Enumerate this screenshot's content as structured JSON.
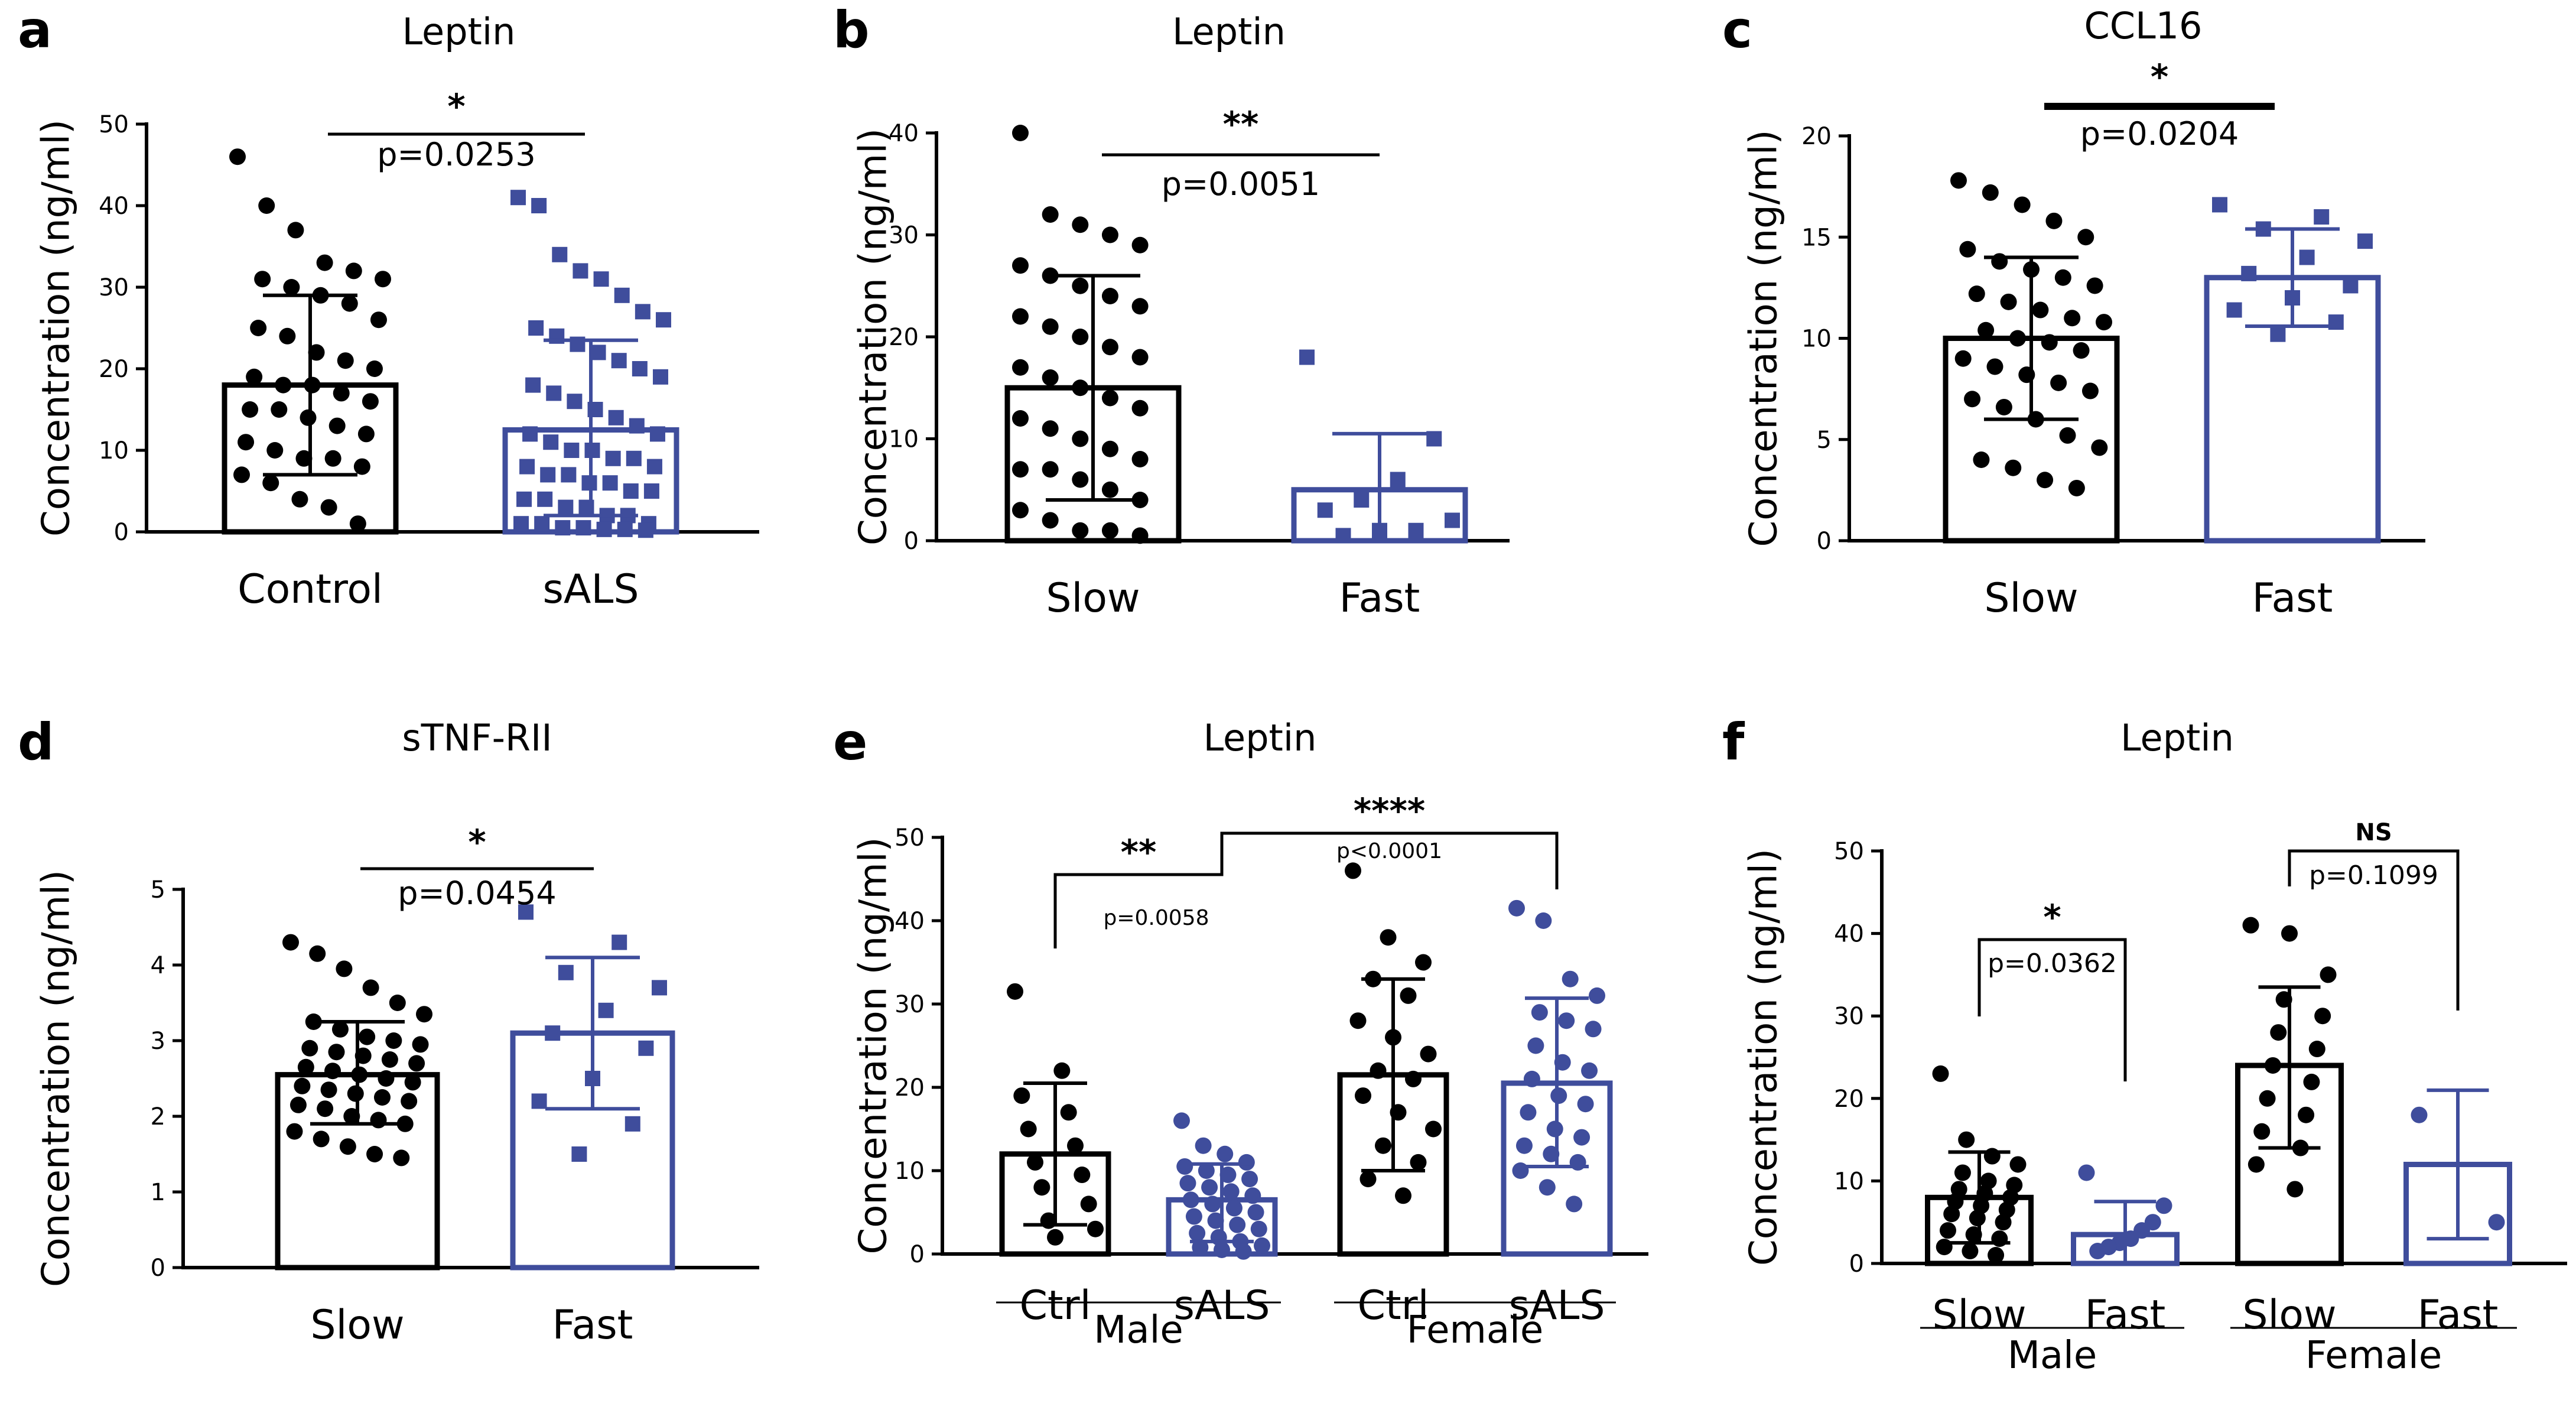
{
  "figure": {
    "y_axis_label": "Concentration (ng/ml)",
    "colors": {
      "black": "#000000",
      "blue": "#3f4d9c"
    }
  },
  "chart_data": [
    {
      "panel": "a",
      "type": "bar",
      "title": "Leptin",
      "ylabel": "Concentration (ng/ml)",
      "ylim": [
        0,
        50
      ],
      "yticks": [
        "0",
        "10",
        "20",
        "30",
        "40",
        "50"
      ],
      "yticks_values": [
        0,
        10,
        20,
        30,
        40,
        50
      ],
      "categories": [
        "Control",
        "sALS"
      ],
      "series": [
        {
          "name": "Control",
          "mean": 18,
          "sd_low": 7,
          "sd_high": 29,
          "color": "#000000",
          "marker": "circle",
          "points": [
            46,
            40,
            37,
            33,
            32,
            31,
            31,
            30,
            29,
            28,
            26,
            25,
            24,
            22,
            21,
            20,
            19,
            18,
            18,
            17,
            16,
            15,
            15,
            14,
            13,
            12,
            11,
            10,
            9,
            9,
            8,
            7,
            6,
            4,
            3,
            1
          ]
        },
        {
          "name": "sALS",
          "mean": 12.5,
          "sd_low": 2,
          "sd_high": 23.5,
          "color": "#3f4d9c",
          "marker": "square",
          "points": [
            41,
            40,
            34,
            32,
            31,
            29,
            27,
            26,
            25,
            24,
            23,
            22,
            21,
            20,
            19,
            18,
            17,
            16,
            15,
            14,
            13,
            12,
            12,
            11,
            10,
            10,
            9,
            9,
            8,
            8,
            7,
            7,
            6,
            6,
            5,
            5,
            4,
            4,
            3,
            3,
            2,
            2,
            1,
            1,
            1,
            0.5,
            0.5,
            0.3,
            0.3,
            0.2
          ]
        }
      ],
      "comparisons": [
        {
          "from": 0,
          "to": 1,
          "stars": "*",
          "p": "p=0.0253",
          "style": "line"
        }
      ]
    },
    {
      "panel": "b",
      "type": "bar",
      "title": "Leptin",
      "ylabel": "Concentration (ng/ml)",
      "ylim": [
        0,
        40
      ],
      "yticks": [
        "0",
        "10",
        "20",
        "30",
        "40"
      ],
      "yticks_values": [
        0,
        10,
        20,
        30,
        40
      ],
      "categories": [
        "Slow",
        "Fast"
      ],
      "series": [
        {
          "name": "Slow",
          "mean": 15,
          "sd_low": 4,
          "sd_high": 26,
          "color": "#000000",
          "marker": "circle",
          "points": [
            40,
            32,
            31,
            30,
            29,
            27,
            26,
            25,
            24,
            23,
            22,
            21,
            20,
            19,
            18,
            17,
            16,
            15,
            14,
            13,
            12,
            11,
            10,
            9,
            8,
            7,
            7,
            6,
            5,
            4,
            3,
            2,
            1,
            1,
            0.5
          ]
        },
        {
          "name": "Fast",
          "mean": 5,
          "sd_low": 0,
          "sd_high": 10.5,
          "color": "#3f4d9c",
          "marker": "square",
          "points": [
            18,
            10,
            6,
            4,
            3,
            2,
            1,
            1,
            0.5
          ]
        }
      ],
      "comparisons": [
        {
          "from": 0,
          "to": 1,
          "stars": "**",
          "p": "p=0.0051",
          "style": "line"
        }
      ]
    },
    {
      "panel": "c",
      "type": "bar",
      "title": "CCL16",
      "ylabel": "Concentration (ng/ml)",
      "ylim": [
        0,
        20
      ],
      "yticks": [
        "0",
        "5",
        "10",
        "15",
        "20"
      ],
      "yticks_values": [
        0,
        5,
        10,
        15,
        20
      ],
      "categories": [
        "Slow",
        "Fast"
      ],
      "series": [
        {
          "name": "Slow",
          "mean": 10,
          "sd_low": 6,
          "sd_high": 14,
          "color": "#000000",
          "marker": "circle",
          "points": [
            17.8,
            17.2,
            16.6,
            15.8,
            15,
            14.4,
            13.8,
            13.4,
            13,
            12.6,
            12.2,
            11.8,
            11.4,
            11,
            10.8,
            10.4,
            10,
            9.8,
            9.4,
            9,
            8.6,
            8.2,
            7.8,
            7.4,
            7,
            6.6,
            6,
            5.2,
            4.6,
            4,
            3.6,
            3,
            2.6
          ]
        },
        {
          "name": "Fast",
          "mean": 13,
          "sd_low": 10.6,
          "sd_high": 15.4,
          "color": "#3f4d9c",
          "marker": "square",
          "points": [
            16.6,
            16,
            15.4,
            14.8,
            14,
            13.2,
            12.6,
            12,
            11.4,
            10.8,
            10.2
          ]
        }
      ],
      "comparisons": [
        {
          "from": 0,
          "to": 1,
          "stars": "*",
          "p": "p=0.0204",
          "style": "thick"
        }
      ]
    },
    {
      "panel": "d",
      "type": "bar",
      "title": "sTNF-RII",
      "ylabel": "Concentration (ng/ml)",
      "ylim": [
        0,
        5
      ],
      "yticks": [
        "0",
        "1",
        "2",
        "3",
        "4",
        "5"
      ],
      "yticks_values": [
        0,
        1,
        2,
        3,
        4,
        5
      ],
      "categories": [
        "Slow",
        "Fast"
      ],
      "series": [
        {
          "name": "Slow",
          "mean": 2.55,
          "sd_low": 1.9,
          "sd_high": 3.25,
          "color": "#000000",
          "marker": "circle",
          "points": [
            4.3,
            4.15,
            3.95,
            3.7,
            3.5,
            3.35,
            3.25,
            3.15,
            3.05,
            3.0,
            2.95,
            2.9,
            2.85,
            2.8,
            2.75,
            2.7,
            2.65,
            2.6,
            2.55,
            2.5,
            2.45,
            2.4,
            2.35,
            2.3,
            2.25,
            2.2,
            2.15,
            2.1,
            2.0,
            1.95,
            1.9,
            1.8,
            1.7,
            1.6,
            1.5,
            1.45
          ]
        },
        {
          "name": "Fast",
          "mean": 3.1,
          "sd_low": 2.1,
          "sd_high": 4.1,
          "color": "#3f4d9c",
          "marker": "square",
          "points": [
            4.7,
            4.3,
            3.9,
            3.7,
            3.4,
            3.1,
            2.9,
            2.5,
            2.2,
            1.9,
            1.5
          ]
        }
      ],
      "comparisons": [
        {
          "from": 0,
          "to": 1,
          "stars": "*",
          "p": "p=0.0454",
          "style": "line"
        }
      ]
    },
    {
      "panel": "e",
      "type": "bar",
      "title": "Leptin",
      "ylabel": "Concentration (ng/ml)",
      "ylim": [
        0,
        50
      ],
      "yticks": [
        "0",
        "10",
        "20",
        "30",
        "40",
        "50"
      ],
      "yticks_values": [
        0,
        10,
        20,
        30,
        40,
        50
      ],
      "categories": [
        "Ctrl",
        "sALS",
        "Ctrl",
        "sALS"
      ],
      "groups": [
        {
          "label": "Male",
          "from": 0,
          "to": 1
        },
        {
          "label": "Female",
          "from": 2,
          "to": 3
        }
      ],
      "series": [
        {
          "name": "Male Ctrl",
          "mean": 12,
          "sd_low": 3.5,
          "sd_high": 20.5,
          "color": "#000000",
          "marker": "circle",
          "points": [
            31.5,
            22,
            19,
            17,
            15,
            13,
            11,
            9.5,
            8,
            6,
            4,
            3,
            2
          ]
        },
        {
          "name": "Male sALS",
          "mean": 6.5,
          "sd_low": 1.5,
          "sd_high": 10.8,
          "color": "#3f4d9c",
          "marker": "circle",
          "points": [
            16,
            13,
            12,
            11,
            10.5,
            10,
            9.5,
            9,
            8.5,
            8,
            7.5,
            7,
            6.5,
            6,
            5.5,
            5,
            4.5,
            4,
            3.5,
            3,
            2.5,
            2,
            1.5,
            1,
            0.8,
            0.5,
            0.3
          ]
        },
        {
          "name": "Female Ctrl",
          "mean": 21.5,
          "sd_low": 10,
          "sd_high": 33,
          "color": "#000000",
          "marker": "circle",
          "points": [
            46,
            38,
            35,
            33,
            31,
            28,
            26,
            24,
            22,
            21,
            19,
            17,
            15,
            13,
            11,
            9,
            7
          ]
        },
        {
          "name": "Female sALS",
          "mean": 20.5,
          "sd_low": 10.5,
          "sd_high": 30.7,
          "color": "#3f4d9c",
          "marker": "circle",
          "points": [
            41.5,
            40,
            33,
            31,
            29,
            28,
            27,
            25,
            23,
            22,
            21,
            19,
            18,
            17,
            15,
            14,
            13,
            12,
            11,
            10,
            8,
            6
          ]
        }
      ],
      "comparisons": [
        {
          "from": 0,
          "to": 1,
          "stars": "**",
          "p": "p=0.0058",
          "style": "bracket"
        },
        {
          "from": 1,
          "to": 3,
          "stars": "****",
          "p": "p<0.0001",
          "style": "bracket"
        }
      ]
    },
    {
      "panel": "f",
      "type": "bar",
      "title": "Leptin",
      "ylabel": "Concentration (ng/ml)",
      "ylim": [
        0,
        50
      ],
      "yticks": [
        "0",
        "10",
        "20",
        "30",
        "40",
        "50"
      ],
      "yticks_values": [
        0,
        10,
        20,
        30,
        40,
        50
      ],
      "categories": [
        "Slow",
        "Fast",
        "Slow",
        "Fast"
      ],
      "groups": [
        {
          "label": "Male",
          "from": 0,
          "to": 1
        },
        {
          "label": "Female",
          "from": 2,
          "to": 3
        }
      ],
      "series": [
        {
          "name": "Male Slow",
          "mean": 8,
          "sd_low": 2.5,
          "sd_high": 13.5,
          "color": "#000000",
          "marker": "circle",
          "points": [
            23,
            15,
            13,
            12,
            11,
            10,
            9.5,
            9,
            8.5,
            8,
            7.5,
            7,
            6.5,
            6,
            5.5,
            5,
            4,
            3.5,
            3,
            2,
            1.5,
            1
          ]
        },
        {
          "name": "Male Fast",
          "mean": 3.5,
          "sd_low": 0,
          "sd_high": 7.5,
          "color": "#3f4d9c",
          "marker": "circle",
          "points": [
            11,
            7,
            5,
            4,
            3,
            2.5,
            2,
            1.5
          ]
        },
        {
          "name": "Female Slow",
          "mean": 24,
          "sd_low": 14,
          "sd_high": 33.5,
          "color": "#000000",
          "marker": "circle",
          "points": [
            41,
            40,
            35,
            32,
            30,
            28,
            26,
            24,
            22,
            20,
            18,
            16,
            14,
            12,
            9
          ]
        },
        {
          "name": "Female Fast",
          "mean": 12,
          "sd_low": 3,
          "sd_high": 21,
          "color": "#3f4d9c",
          "marker": "circle",
          "points": [
            18,
            5
          ]
        }
      ],
      "comparisons": [
        {
          "from": 0,
          "to": 1,
          "stars": "*",
          "p": "p=0.0362",
          "style": "bracket"
        },
        {
          "from": 2,
          "to": 3,
          "stars": "NS",
          "p": "p=0.1099",
          "style": "bracket"
        }
      ]
    }
  ]
}
